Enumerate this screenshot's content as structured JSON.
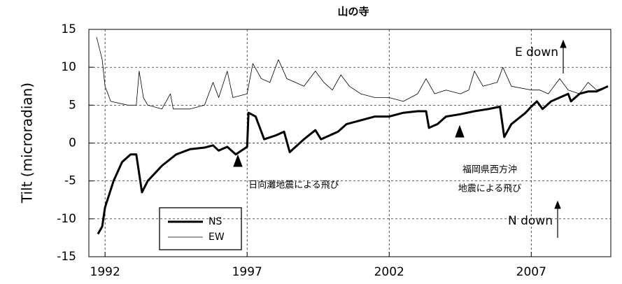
{
  "chart_data": {
    "type": "line",
    "title": "山の寺",
    "y_label": "Tilt (microradian)",
    "xlim": [
      1991.43,
      2009.8
    ],
    "xticks": [
      1992,
      1997,
      2002,
      2007
    ],
    "ylim": [
      -15,
      15
    ],
    "yticks": [
      -15,
      -10,
      -5,
      0,
      5,
      10,
      15
    ],
    "grid": true,
    "legend": "lower left",
    "annotations": [
      "日向灘地震による飛び",
      "福岡県西方沖",
      "地震による飛び",
      "E down",
      "N down"
    ],
    "series": [
      {
        "name": "NS",
        "color": "#000000",
        "x": [
          1991.75,
          1991.9,
          1992.0,
          1992.3,
          1992.6,
          1992.9,
          1993.1,
          1993.3,
          1993.5,
          1994.0,
          1994.5,
          1995.0,
          1995.5,
          1995.8,
          1996.0,
          1996.3,
          1996.6,
          1997.0,
          1997.05,
          1997.3,
          1997.6,
          1998.0,
          1998.3,
          1998.5,
          1999.0,
          1999.4,
          1999.6,
          2000.2,
          2000.5,
          2001.0,
          2001.5,
          2002.0,
          2002.5,
          2003.0,
          2003.3,
          2003.4,
          2003.7,
          2004.0,
          2004.5,
          2005.0,
          2005.5,
          2005.9,
          2006.05,
          2006.3,
          2006.8,
          2007.0,
          2007.2,
          2007.4,
          2007.7,
          2008.0,
          2008.3,
          2008.4,
          2008.7,
          2009.0,
          2009.3,
          2009.7
        ],
        "values": [
          -12,
          -11,
          -8.5,
          -5,
          -2.5,
          -1.5,
          -1.5,
          -6.5,
          -5,
          -3,
          -1.5,
          -0.8,
          -0.6,
          -0.3,
          -1,
          -0.5,
          -1.5,
          -0.5,
          4,
          3.5,
          0.5,
          1,
          1.5,
          -1.2,
          0.5,
          1.7,
          0.5,
          1.5,
          2.5,
          3,
          3.5,
          3.5,
          4,
          4.2,
          4.2,
          2,
          2.5,
          3.5,
          3.8,
          4.2,
          4.5,
          4.8,
          0.8,
          2.5,
          4,
          4.8,
          5.5,
          4.5,
          5.5,
          6,
          6.5,
          5.5,
          6.5,
          6.8,
          6.8,
          7.5
        ]
      },
      {
        "name": "EW",
        "color": "#000000",
        "x": [
          1991.7,
          1991.9,
          1992.0,
          1992.2,
          1992.8,
          1993.1,
          1993.2,
          1993.35,
          1993.5,
          1994.0,
          1994.3,
          1994.4,
          1995.0,
          1995.5,
          1995.8,
          1996.0,
          1996.3,
          1996.5,
          1997.0,
          1997.2,
          1997.5,
          1997.8,
          1998.1,
          1998.4,
          1999.0,
          1999.4,
          1999.7,
          2000.0,
          2000.3,
          2000.6,
          2001.0,
          2001.5,
          2002.0,
          2002.5,
          2003.0,
          2003.3,
          2003.6,
          2004.0,
          2004.5,
          2004.8,
          2005.0,
          2005.3,
          2005.8,
          2006.0,
          2006.3,
          2007.0,
          2007.3,
          2007.6,
          2008.0,
          2008.3,
          2008.7,
          2009.0,
          2009.3,
          2009.7
        ],
        "values": [
          14,
          11,
          7.5,
          5.5,
          5,
          5,
          9.5,
          6,
          5,
          4.5,
          6.5,
          4.5,
          4.5,
          5,
          8,
          6,
          9.5,
          6,
          6.5,
          10.5,
          8.5,
          8,
          11,
          8.5,
          7.5,
          9.5,
          8,
          7,
          9,
          7.5,
          6.5,
          6,
          6,
          5.5,
          6.5,
          8.5,
          6.5,
          7,
          6.5,
          7,
          9.5,
          7.5,
          8,
          10,
          7.5,
          7,
          7,
          6.5,
          8.5,
          7,
          6.5,
          8,
          7,
          7.5
        ]
      }
    ]
  }
}
